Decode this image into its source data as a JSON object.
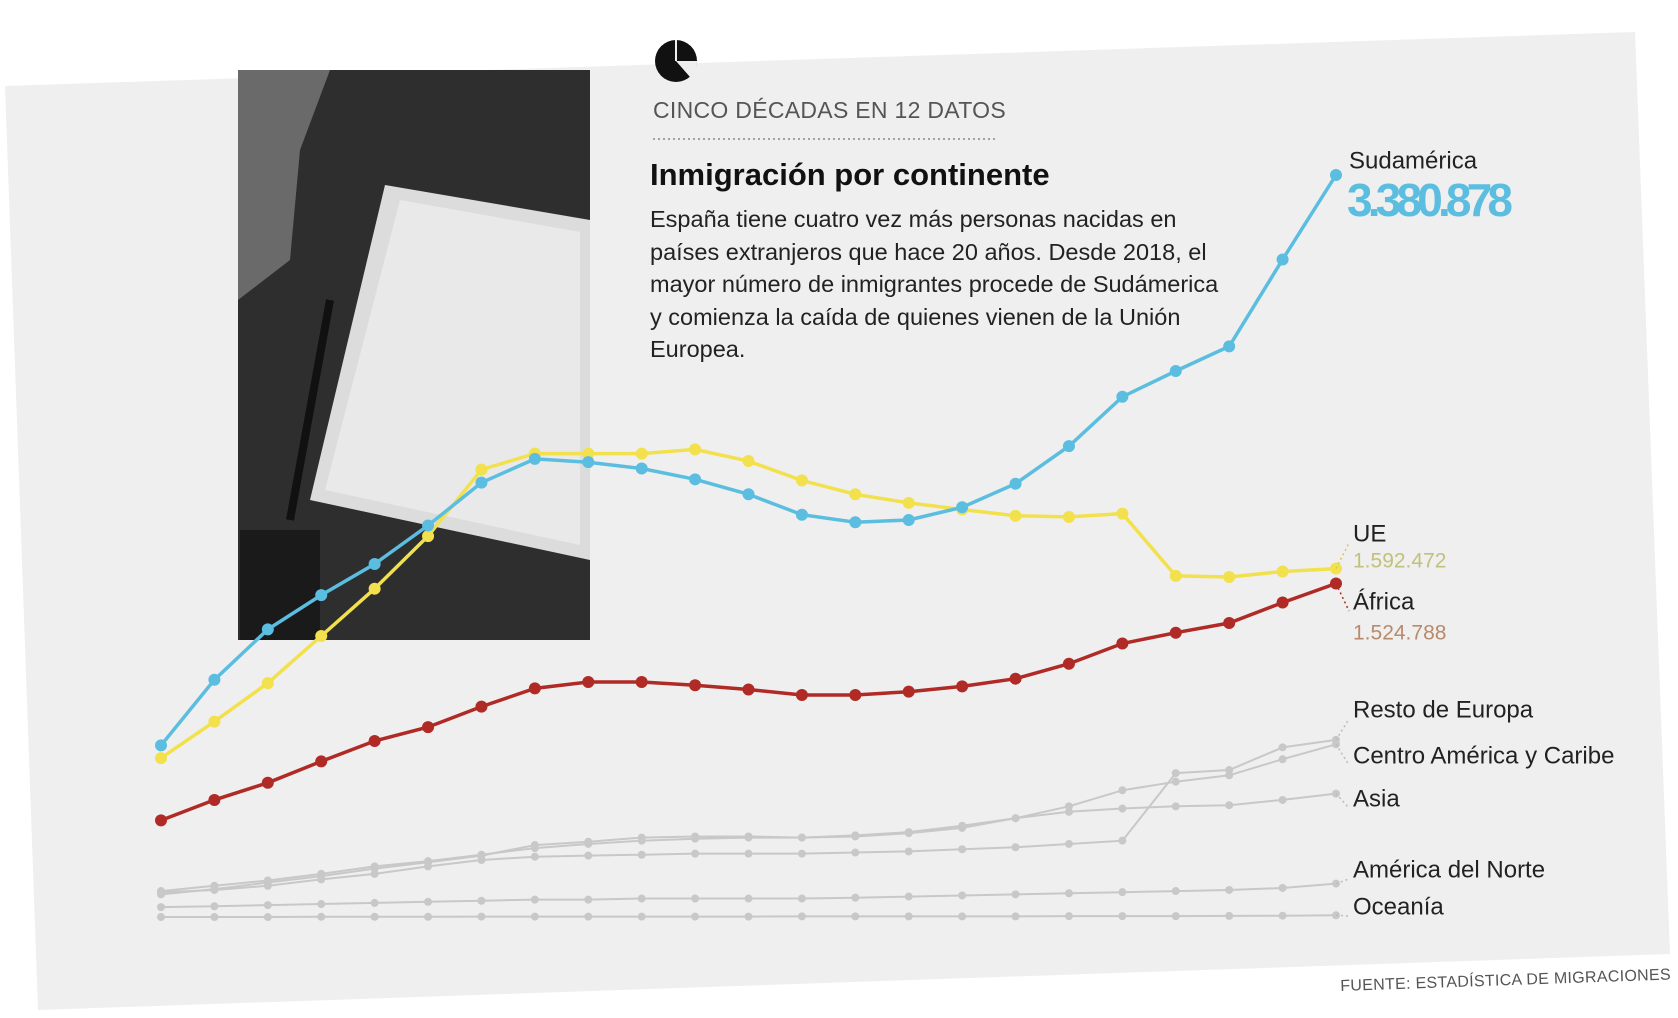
{
  "header": "CINCO DÉCADAS EN 12 DATOS",
  "source": "FUENTE: ESTADÍSTICA DE MIGRACIONES",
  "chart_data": {
    "type": "line",
    "title": "Inmigración por continente",
    "subtitle": "España tiene cuatro vez más personas nacidas en países extranjeros que hace 20 años. Desde 2018, el mayor número de inmigrantes procede de Sudámerica y comienza la caída de quienes vienen de la Unión Europea.",
    "series": [
      {
        "name": "Sudamérica",
        "color": "#5bbde0",
        "values": [
          789000,
          1087000,
          1316000,
          1472000,
          1613000,
          1788000,
          1983000,
          2091000,
          2076000,
          2047000,
          1998000,
          1930000,
          1837000,
          1803000,
          1813000,
          1871000,
          1978000,
          2149000,
          2373000,
          2490000,
          2602000,
          2997000,
          3380878
        ],
        "value_labels": [
          null,
          null,
          null,
          null,
          null,
          null,
          null,
          null,
          null,
          null,
          null,
          null,
          null,
          null,
          null,
          null,
          null,
          null,
          null,
          null,
          null,
          null,
          "3.380.878"
        ]
      },
      {
        "name": "UE",
        "color": "#f2e14c",
        "values": [
          731000,
          897000,
          1072000,
          1286000,
          1501000,
          1740000,
          2042000,
          2115000,
          2115000,
          2115000,
          2134000,
          2081000,
          1993000,
          1930000,
          1891000,
          1861000,
          1832000,
          1827000,
          1842000,
          1559000,
          1554000,
          1579000,
          1592472
        ],
        "value_labels": [
          null,
          null,
          null,
          null,
          null,
          null,
          null,
          null,
          null,
          null,
          null,
          null,
          null,
          null,
          null,
          null,
          null,
          null,
          null,
          null,
          null,
          null,
          "1.592.472"
        ]
      },
      {
        "name": "África",
        "color": "#b02a26",
        "values": [
          448000,
          541000,
          619000,
          716000,
          809000,
          872000,
          965000,
          1048000,
          1077000,
          1077000,
          1062000,
          1043000,
          1018000,
          1018000,
          1033000,
          1057000,
          1092000,
          1160000,
          1252000,
          1301000,
          1345000,
          1438000,
          1524788
        ],
        "value_labels": [
          null,
          null,
          null,
          null,
          null,
          null,
          null,
          null,
          null,
          null,
          null,
          null,
          null,
          null,
          null,
          null,
          null,
          null,
          null,
          null,
          null,
          null,
          "1.524.788"
        ]
      },
      {
        "name": "Resto de Europa",
        "color": "#c8c8c8",
        "values": [
          122000,
          132000,
          151000,
          180000,
          205000,
          239000,
          268000,
          283000,
          288000,
          292000,
          297000,
          297000,
          297000,
          302000,
          307000,
          317000,
          326000,
          341000,
          356000,
          663000,
          677000,
          780000,
          814000
        ]
      },
      {
        "name": "Centro América y Caribe",
        "color": "#c8c8c8",
        "values": [
          127000,
          151000,
          175000,
          205000,
          239000,
          263000,
          292000,
          322000,
          341000,
          356000,
          365000,
          370000,
          370000,
          375000,
          390000,
          414000,
          458000,
          512000,
          585000,
          624000,
          653000,
          726000,
          794000
        ]
      },
      {
        "name": "Asia",
        "color": "#c8c8c8",
        "values": [
          112000,
          136000,
          166000,
          195000,
          229000,
          258000,
          288000,
          336000,
          351000,
          370000,
          375000,
          375000,
          370000,
          380000,
          395000,
          424000,
          458000,
          487000,
          502000,
          512000,
          517000,
          541000,
          570000
        ]
      },
      {
        "name": "América del Norte",
        "color": "#c8c8c8",
        "values": [
          54000,
          58000,
          63000,
          68000,
          73000,
          78000,
          83000,
          88000,
          88000,
          93000,
          93000,
          93000,
          93000,
          97000,
          102000,
          107000,
          112000,
          117000,
          122000,
          127000,
          132000,
          141000,
          161000
        ]
      },
      {
        "name": "Oceanía",
        "color": "#c8c8c8",
        "values": [
          9000,
          9000,
          9000,
          10000,
          10000,
          10000,
          11000,
          11000,
          11000,
          11000,
          11000,
          11000,
          12000,
          12000,
          12000,
          12000,
          12000,
          13000,
          13000,
          13000,
          14000,
          15000,
          17000
        ]
      }
    ]
  }
}
